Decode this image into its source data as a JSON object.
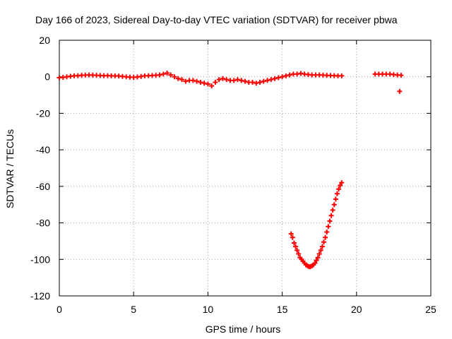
{
  "chart_data": {
    "type": "scatter",
    "title": "Day 166 of 2023, Sidereal Day-to-day VTEC variation (SDTVAR) for receiver pbwa",
    "xlabel": "GPS time / hours",
    "ylabel": "SDTVAR / TECUs",
    "xlim": [
      0,
      25
    ],
    "ylim": [
      -120,
      20
    ],
    "x_ticks": [
      0,
      5,
      10,
      15,
      20,
      25
    ],
    "y_ticks": [
      -120,
      -100,
      -80,
      -60,
      -40,
      -20,
      0,
      20
    ],
    "x_tick_labels": [
      "0",
      "5",
      "10",
      "15",
      "20",
      "25"
    ],
    "y_tick_labels": [
      "-120",
      "-100",
      "-80",
      "-60",
      "-40",
      "-20",
      "0",
      "20"
    ],
    "grid": true,
    "marker": "plus",
    "color": "#ff0000",
    "series": [
      {
        "points": [
          [
            0.0,
            -0.5
          ],
          [
            0.25,
            -0.3
          ],
          [
            0.5,
            0.0
          ],
          [
            0.75,
            0.3
          ],
          [
            1.0,
            0.5
          ],
          [
            1.25,
            0.6
          ],
          [
            1.5,
            0.8
          ],
          [
            1.75,
            0.9
          ],
          [
            2.0,
            1.0
          ],
          [
            2.25,
            0.9
          ],
          [
            2.5,
            0.8
          ],
          [
            2.75,
            0.7
          ],
          [
            3.0,
            0.6
          ],
          [
            3.25,
            0.6
          ],
          [
            3.5,
            0.5
          ],
          [
            3.75,
            0.5
          ],
          [
            4.0,
            0.4
          ],
          [
            4.25,
            0.2
          ],
          [
            4.5,
            0.0
          ],
          [
            4.75,
            -0.2
          ],
          [
            5.0,
            -0.3
          ],
          [
            5.25,
            -0.1
          ],
          [
            5.5,
            0.2
          ],
          [
            5.75,
            0.5
          ],
          [
            6.0,
            0.6
          ],
          [
            6.25,
            0.7
          ],
          [
            6.5,
            0.8
          ],
          [
            6.75,
            1.0
          ],
          [
            7.0,
            1.5
          ],
          [
            7.25,
            2.0
          ],
          [
            7.5,
            1.0
          ],
          [
            7.75,
            0.0
          ],
          [
            8.0,
            -1.0
          ],
          [
            8.25,
            -1.5
          ],
          [
            8.5,
            -2.5
          ],
          [
            8.75,
            -2.0
          ],
          [
            9.0,
            -2.0
          ],
          [
            9.25,
            -2.5
          ],
          [
            9.5,
            -3.0
          ],
          [
            9.75,
            -3.5
          ],
          [
            10.0,
            -4.0
          ],
          [
            10.25,
            -5.0
          ],
          [
            10.5,
            -3.0
          ],
          [
            10.75,
            -1.5
          ],
          [
            11.0,
            -1.0
          ],
          [
            11.25,
            -1.5
          ],
          [
            11.5,
            -2.0
          ],
          [
            11.75,
            -2.0
          ],
          [
            12.0,
            -1.5
          ],
          [
            12.25,
            -2.0
          ],
          [
            12.5,
            -2.5
          ],
          [
            12.75,
            -3.0
          ],
          [
            13.0,
            -3.0
          ],
          [
            13.25,
            -3.5
          ],
          [
            13.5,
            -3.0
          ],
          [
            13.75,
            -2.5
          ],
          [
            14.0,
            -2.0
          ],
          [
            14.25,
            -1.5
          ],
          [
            14.5,
            -1.0
          ],
          [
            14.75,
            -0.5
          ],
          [
            15.0,
            0.0
          ],
          [
            15.25,
            0.5
          ],
          [
            15.5,
            1.0
          ],
          [
            15.75,
            1.5
          ],
          [
            16.0,
            1.5
          ],
          [
            16.25,
            1.8
          ],
          [
            16.5,
            1.5
          ],
          [
            16.75,
            1.2
          ],
          [
            17.0,
            1.0
          ],
          [
            17.25,
            1.0
          ],
          [
            17.5,
            1.0
          ],
          [
            17.75,
            0.9
          ],
          [
            18.0,
            0.8
          ],
          [
            18.25,
            0.7
          ],
          [
            18.5,
            0.6
          ],
          [
            18.75,
            0.5
          ],
          [
            19.0,
            0.5
          ],
          [
            21.25,
            1.5
          ],
          [
            21.5,
            1.5
          ],
          [
            21.75,
            1.5
          ],
          [
            22.0,
            1.5
          ],
          [
            22.25,
            1.5
          ],
          [
            22.5,
            1.2
          ],
          [
            22.75,
            1.0
          ],
          [
            23.0,
            0.8
          ],
          [
            22.9,
            -8.0
          ],
          [
            15.6,
            -86.0
          ],
          [
            15.7,
            -88.0
          ],
          [
            15.8,
            -91.0
          ],
          [
            15.9,
            -93.0
          ],
          [
            16.0,
            -95.0
          ],
          [
            16.1,
            -97.0
          ],
          [
            16.2,
            -99.0
          ],
          [
            16.3,
            -100.0
          ],
          [
            16.4,
            -101.0
          ],
          [
            16.5,
            -102.0
          ],
          [
            16.6,
            -103.0
          ],
          [
            16.7,
            -103.5
          ],
          [
            16.8,
            -104.0
          ],
          [
            16.9,
            -104.0
          ],
          [
            17.0,
            -103.5
          ],
          [
            17.1,
            -103.0
          ],
          [
            17.2,
            -102.0
          ],
          [
            17.3,
            -100.5
          ],
          [
            17.4,
            -99.0
          ],
          [
            17.5,
            -97.0
          ],
          [
            17.6,
            -95.0
          ],
          [
            17.7,
            -93.0
          ],
          [
            17.8,
            -90.5
          ],
          [
            17.9,
            -88.0
          ],
          [
            18.0,
            -85.0
          ],
          [
            18.1,
            -82.0
          ],
          [
            18.2,
            -79.0
          ],
          [
            18.3,
            -76.0
          ],
          [
            18.4,
            -73.0
          ],
          [
            18.5,
            -70.0
          ],
          [
            18.6,
            -67.0
          ],
          [
            18.7,
            -64.0
          ],
          [
            18.8,
            -61.5
          ],
          [
            18.9,
            -59.5
          ],
          [
            19.0,
            -58.0
          ]
        ]
      }
    ]
  }
}
